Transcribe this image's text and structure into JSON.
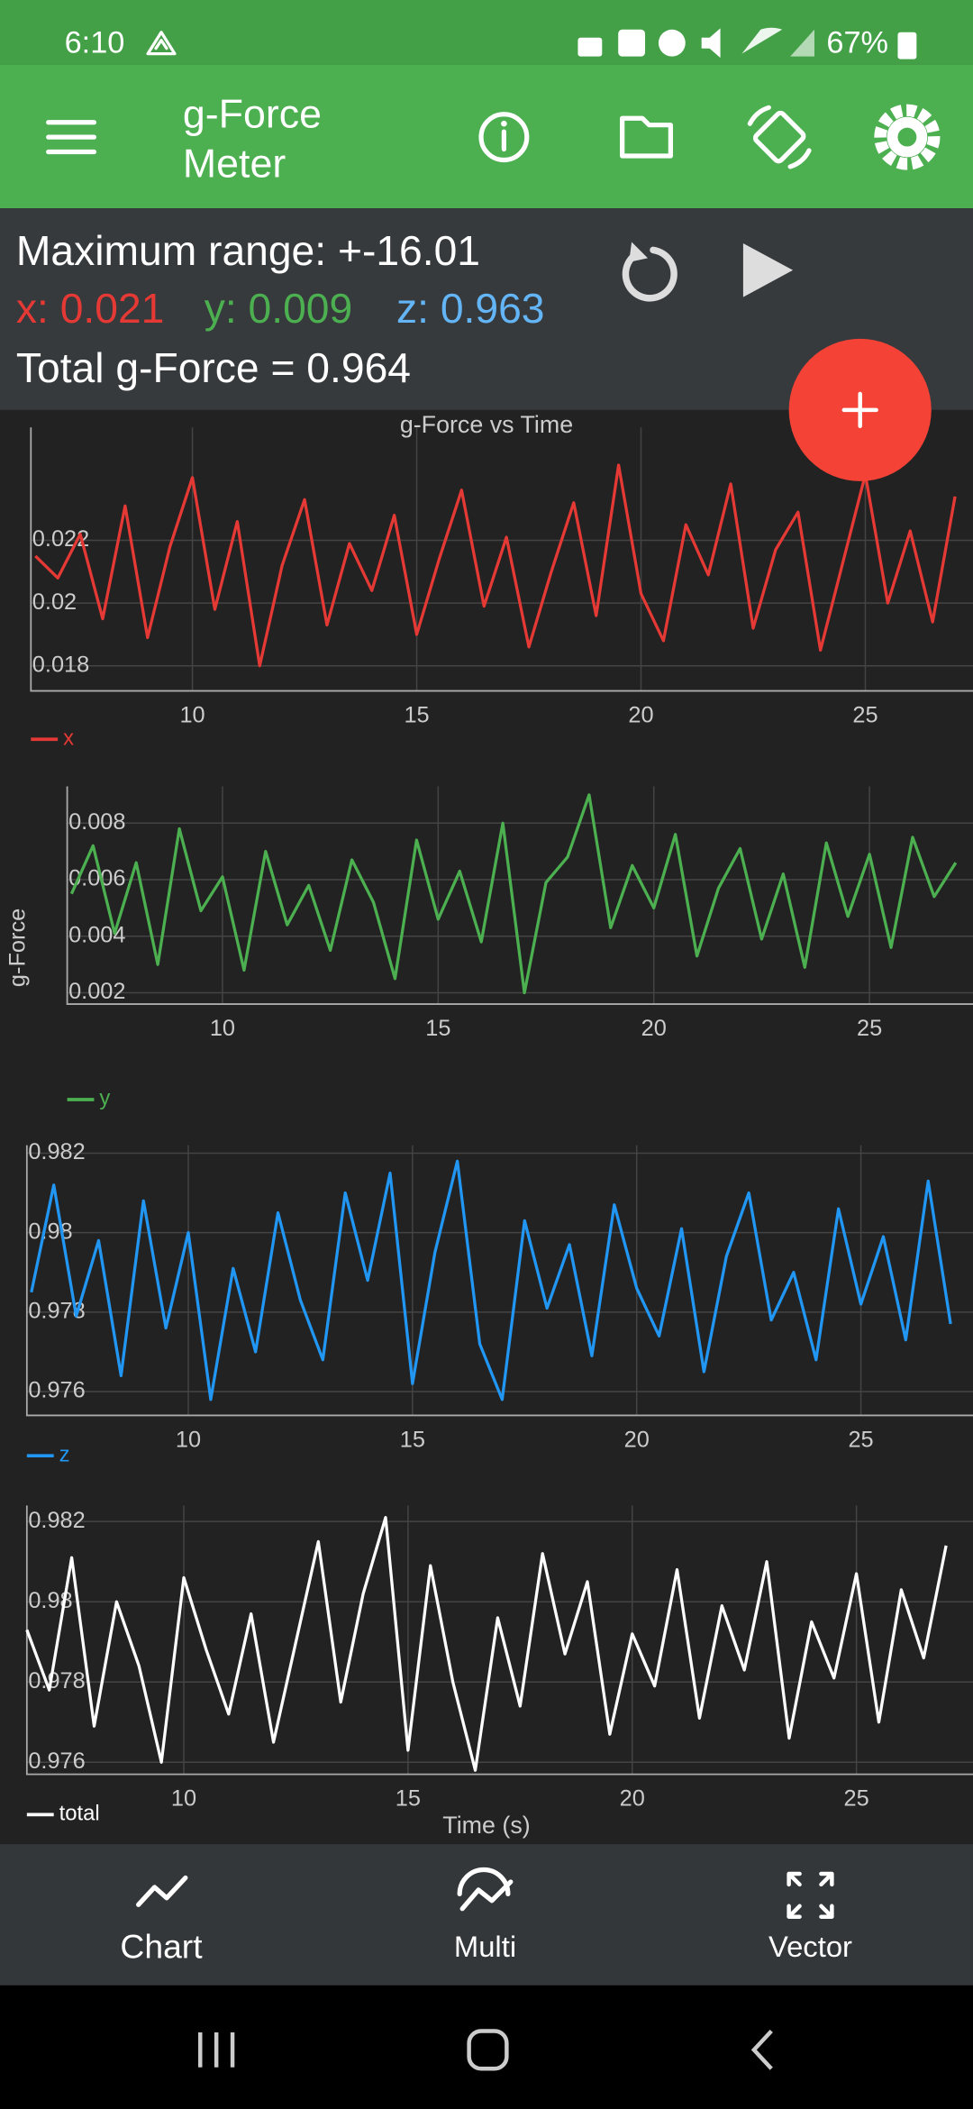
{
  "status_bar": {
    "time": "6:10",
    "battery": "67%"
  },
  "app_bar": {
    "title": [
      "g-Force",
      "Meter"
    ]
  },
  "info": {
    "max_range": "Maximum range: +-16.01",
    "x": "x: 0.021",
    "y": "y: 0.009",
    "z": "z: 0.963",
    "total": "Total g-Force = 0.964"
  },
  "bottom_nav": [
    "Chart",
    "Multi",
    "Vector"
  ],
  "chart_data": [
    {
      "type": "line",
      "title": "g-Force vs Time",
      "grid": true,
      "x": [
        6.5,
        7,
        7.5,
        8,
        8.5,
        9,
        9.5,
        10,
        10.5,
        11,
        11.5,
        12,
        12.5,
        13,
        13.5,
        14,
        14.5,
        15,
        15.5,
        16,
        16.5,
        17,
        17.5,
        18,
        18.5,
        19,
        19.5,
        20,
        20.5,
        21,
        21.5,
        22,
        22.5,
        23,
        23.5,
        24,
        24.5,
        25,
        25.5,
        26,
        26.5,
        27
      ],
      "xlim": [
        6.4,
        27.4
      ],
      "xticks": [
        10,
        15,
        20,
        25
      ],
      "ylim": [
        0.0172,
        0.0256
      ],
      "yticks": [
        0.018,
        0.02,
        0.022
      ],
      "series": [
        {
          "name": "x",
          "color": "#e53935",
          "values": [
            0.0215,
            0.0208,
            0.0222,
            0.0195,
            0.0231,
            0.0189,
            0.0218,
            0.024,
            0.0198,
            0.0226,
            0.018,
            0.0212,
            0.0233,
            0.0193,
            0.0219,
            0.0204,
            0.0228,
            0.019,
            0.0214,
            0.0236,
            0.0199,
            0.0221,
            0.0186,
            0.021,
            0.0232,
            0.0196,
            0.0244,
            0.0203,
            0.0188,
            0.0225,
            0.0209,
            0.0238,
            0.0192,
            0.0217,
            0.0229,
            0.0185,
            0.0213,
            0.0241,
            0.02,
            0.0223,
            0.0194,
            0.0234
          ]
        }
      ]
    },
    {
      "type": "line",
      "ylabel": "g-Force",
      "grid": true,
      "x": [
        6.5,
        7,
        7.5,
        8,
        8.5,
        9,
        9.5,
        10,
        10.5,
        11,
        11.5,
        12,
        12.5,
        13,
        13.5,
        14,
        14.5,
        15,
        15.5,
        16,
        16.5,
        17,
        17.5,
        18,
        18.5,
        19,
        19.5,
        20,
        20.5,
        21,
        21.5,
        22,
        22.5,
        23,
        23.5,
        24,
        24.5,
        25,
        25.5,
        26,
        26.5,
        27
      ],
      "xlim": [
        6.4,
        27.4
      ],
      "xticks": [
        10,
        15,
        20,
        25
      ],
      "ylim": [
        0.0016,
        0.0093
      ],
      "yticks": [
        0.002,
        0.004,
        0.006,
        0.008
      ],
      "series": [
        {
          "name": "y",
          "color": "#4caf50",
          "values": [
            0.0055,
            0.0072,
            0.0041,
            0.0066,
            0.003,
            0.0078,
            0.0049,
            0.0061,
            0.0028,
            0.007,
            0.0044,
            0.0058,
            0.0035,
            0.0067,
            0.0052,
            0.0025,
            0.0074,
            0.0046,
            0.0063,
            0.0038,
            0.008,
            0.002,
            0.0059,
            0.0068,
            0.009,
            0.0043,
            0.0065,
            0.005,
            0.0076,
            0.0033,
            0.0057,
            0.0071,
            0.0039,
            0.0062,
            0.0029,
            0.0073,
            0.0047,
            0.0069,
            0.0036,
            0.0075,
            0.0054,
            0.0066
          ]
        }
      ]
    },
    {
      "type": "line",
      "grid": true,
      "x": [
        6.5,
        7,
        7.5,
        8,
        8.5,
        9,
        9.5,
        10,
        10.5,
        11,
        11.5,
        12,
        12.5,
        13,
        13.5,
        14,
        14.5,
        15,
        15.5,
        16,
        16.5,
        17,
        17.5,
        18,
        18.5,
        19,
        19.5,
        20,
        20.5,
        21,
        21.5,
        22,
        22.5,
        23,
        23.5,
        24,
        24.5,
        25,
        25.5,
        26,
        26.5,
        27
      ],
      "xlim": [
        6.4,
        27.5
      ],
      "xticks": [
        10,
        15,
        20,
        25
      ],
      "ylim": [
        0.9754,
        0.9822
      ],
      "yticks": [
        0.976,
        0.978,
        0.98,
        0.982
      ],
      "series": [
        {
          "name": "z",
          "color": "#2196f3",
          "values": [
            0.9785,
            0.9812,
            0.9779,
            0.9798,
            0.9764,
            0.9808,
            0.9776,
            0.98,
            0.9758,
            0.9791,
            0.977,
            0.9805,
            0.9783,
            0.9768,
            0.981,
            0.9788,
            0.9815,
            0.9762,
            0.9795,
            0.9818,
            0.9772,
            0.9758,
            0.9803,
            0.9781,
            0.9797,
            0.9769,
            0.9807,
            0.9786,
            0.9774,
            0.9801,
            0.9765,
            0.9794,
            0.981,
            0.9778,
            0.979,
            0.9768,
            0.9806,
            0.9782,
            0.9799,
            0.9773,
            0.9813,
            0.9777
          ]
        }
      ]
    },
    {
      "type": "line",
      "xlabel": "Time (s)",
      "grid": true,
      "x": [
        6.5,
        7,
        7.5,
        8,
        8.5,
        9,
        9.5,
        10,
        10.5,
        11,
        11.5,
        12,
        12.5,
        13,
        13.5,
        14,
        14.5,
        15,
        15.5,
        16,
        16.5,
        17,
        17.5,
        18,
        18.5,
        19,
        19.5,
        20,
        20.5,
        21,
        21.5,
        22,
        22.5,
        23,
        23.5,
        24,
        24.5,
        25,
        25.5,
        26,
        26.5,
        27
      ],
      "xlim": [
        6.5,
        27.6
      ],
      "xticks": [
        10,
        15,
        20,
        25
      ],
      "ylim": [
        0.9757,
        0.9824
      ],
      "yticks": [
        0.976,
        0.978,
        0.98,
        0.982
      ],
      "series": [
        {
          "name": "total",
          "color": "#ffffff",
          "values": [
            0.9793,
            0.9778,
            0.9811,
            0.9769,
            0.98,
            0.9784,
            0.976,
            0.9806,
            0.9788,
            0.9772,
            0.9797,
            0.9765,
            0.979,
            0.9815,
            0.9775,
            0.9802,
            0.9821,
            0.9763,
            0.9809,
            0.978,
            0.9758,
            0.9796,
            0.9774,
            0.9812,
            0.9787,
            0.9805,
            0.9767,
            0.9792,
            0.9779,
            0.9808,
            0.9771,
            0.9799,
            0.9783,
            0.981,
            0.9766,
            0.9795,
            0.9781,
            0.9807,
            0.977,
            0.9803,
            0.9786,
            0.9814
          ]
        }
      ]
    }
  ]
}
